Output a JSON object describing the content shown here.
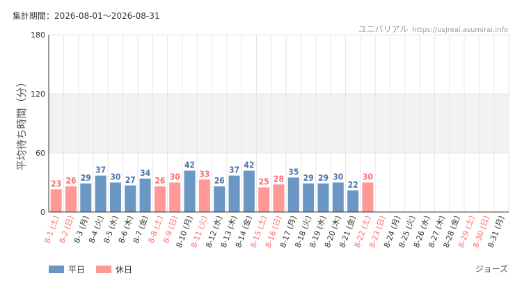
{
  "header": {
    "period": "集計期間：2026-08-01～2026-08-31",
    "site_name": "ユニバリアル",
    "site_url": "https://usjreal.asumirai.info"
  },
  "attraction": "ジョーズ",
  "colors": {
    "weekday": "#6a97c4",
    "holiday": "#ff9896",
    "weekday_label": "#4a76a8",
    "holiday_label": "#ff6b6b",
    "tick_weekday": "#333333",
    "tick_holiday": "#ff6b6b",
    "band": "#f2f2f2",
    "grid": "#e6e6e6"
  },
  "legend": {
    "weekday": "平日",
    "holiday": "休日"
  },
  "chart_data": {
    "type": "bar",
    "title": "",
    "xlabel": "",
    "ylabel": "平均待ち時間（分）",
    "ylim": [
      0,
      180
    ],
    "yticks": [
      0,
      60,
      120,
      180
    ],
    "shaded_band": [
      60,
      120
    ],
    "grid": true,
    "legend_position": "bottom-left",
    "categories": [
      "8-1 (土)",
      "8-2 (日)",
      "8-3 (月)",
      "8-4 (火)",
      "8-5 (水)",
      "8-6 (木)",
      "8-7 (金)",
      "8-8 (土)",
      "8-9 (日)",
      "8-10 (月)",
      "8-11 (火)",
      "8-12 (水)",
      "8-13 (木)",
      "8-14 (金)",
      "8-15 (土)",
      "8-16 (日)",
      "8-17 (月)",
      "8-18 (火)",
      "8-19 (水)",
      "8-20 (木)",
      "8-21 (金)",
      "8-22 (土)",
      "8-23 (日)",
      "8-24 (月)",
      "8-25 (火)",
      "8-26 (水)",
      "8-27 (木)",
      "8-28 (金)",
      "8-29 (土)",
      "8-30 (日)",
      "8-31 (月)"
    ],
    "values": [
      23,
      26,
      29,
      37,
      30,
      27,
      34,
      26,
      30,
      42,
      33,
      26,
      37,
      42,
      25,
      28,
      35,
      29,
      29,
      30,
      22,
      30,
      null,
      null,
      null,
      null,
      null,
      null,
      null,
      null,
      null
    ],
    "holiday": [
      true,
      true,
      false,
      false,
      false,
      false,
      false,
      true,
      true,
      false,
      true,
      false,
      false,
      false,
      true,
      true,
      false,
      false,
      false,
      false,
      false,
      true,
      true,
      false,
      false,
      false,
      false,
      false,
      true,
      true,
      false
    ],
    "series": [
      {
        "name": "平日"
      },
      {
        "name": "休日"
      }
    ]
  }
}
